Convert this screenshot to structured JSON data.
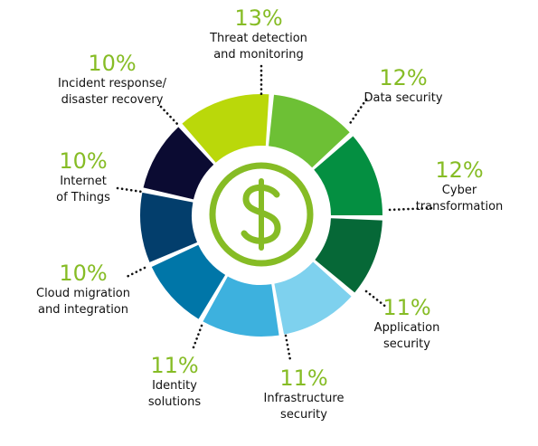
{
  "chart_data": {
    "type": "pie",
    "categories": [
      "Threat detection and monitoring",
      "Data security",
      "Cyber transformation",
      "Application security",
      "Infrastructure security",
      "Identity solutions",
      "Cloud migration and integration",
      "Internet of Things",
      "Incident response/ disaster recovery"
    ],
    "values": [
      13,
      12,
      12,
      11,
      11,
      11,
      10,
      10,
      10
    ],
    "colors": [
      "#bad80a",
      "#6dc035",
      "#048f41",
      "#066837",
      "#7ed1ee",
      "#3db1de",
      "#0076a8",
      "#033e6c",
      "#0b0b32"
    ],
    "center_icon": "dollar-icon",
    "accent_color": "#86bc25"
  },
  "labels": [
    {
      "pct": "13%",
      "line1": "Threat detection",
      "line2": "and monitoring"
    },
    {
      "pct": "12%",
      "line1": "Data security",
      "line2": ""
    },
    {
      "pct": "12%",
      "line1": "Cyber",
      "line2": "transformation"
    },
    {
      "pct": "11%",
      "line1": "Application",
      "line2": "security"
    },
    {
      "pct": "11%",
      "line1": "Infrastructure",
      "line2": "security"
    },
    {
      "pct": "11%",
      "line1": "Identity",
      "line2": "solutions"
    },
    {
      "pct": "10%",
      "line1": "Cloud migration",
      "line2": "and integration"
    },
    {
      "pct": "10%",
      "line1": "Internet",
      "line2": "of Things"
    },
    {
      "pct": "10%",
      "line1": "Incident response/",
      "line2": "disaster recovery"
    }
  ]
}
